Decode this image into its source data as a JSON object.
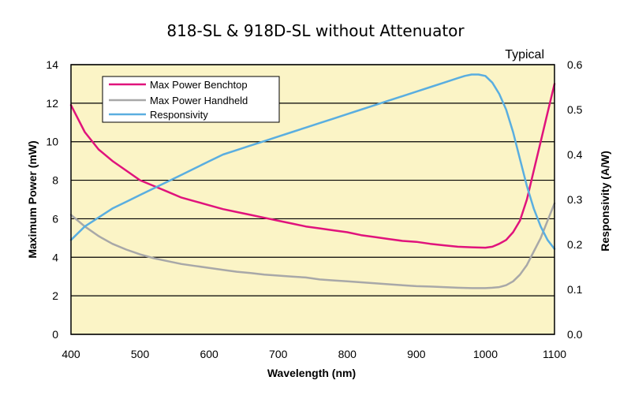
{
  "chart_data": {
    "type": "line",
    "title": "818-SL & 918D-SL without Attenuator",
    "annotation": "Typical",
    "xlabel": "Wavelength (nm)",
    "ylabel": "Maximum Power (mW)",
    "ylabel_right": "Responsivity  (A/W)",
    "xlim": [
      400,
      1100
    ],
    "ylim": [
      0,
      14
    ],
    "ylim_right": [
      0,
      0.6
    ],
    "x_ticks": [
      "400",
      "500",
      "600",
      "700",
      "800",
      "900",
      "1000",
      "1100"
    ],
    "y_ticks": [
      "0",
      "2",
      "4",
      "6",
      "8",
      "10",
      "12",
      "14"
    ],
    "y_ticks_right": [
      "0.0",
      "0.1",
      "0.2",
      "0.3",
      "0.4",
      "0.5",
      "0.6"
    ],
    "grid": "horizontal",
    "legend_position": "top-left",
    "colors": {
      "plot_background": "#fbf4c6",
      "gridline": "#000000",
      "benchtop": "#e0137c",
      "handheld": "#a8a8a8",
      "responsivity": "#5aaee0"
    },
    "series": [
      {
        "name": "Max Power Benchtop",
        "axis": "left",
        "x": [
          400,
          420,
          440,
          460,
          480,
          500,
          520,
          540,
          560,
          580,
          600,
          620,
          640,
          660,
          680,
          700,
          720,
          740,
          760,
          780,
          800,
          820,
          840,
          860,
          880,
          900,
          920,
          940,
          960,
          980,
          1000,
          1010,
          1020,
          1030,
          1040,
          1050,
          1060,
          1070,
          1080,
          1090,
          1100
        ],
        "values": [
          11.9,
          10.5,
          9.6,
          9.0,
          8.5,
          8.0,
          7.7,
          7.4,
          7.1,
          6.9,
          6.7,
          6.5,
          6.35,
          6.2,
          6.05,
          5.9,
          5.75,
          5.6,
          5.5,
          5.4,
          5.3,
          5.15,
          5.05,
          4.95,
          4.85,
          4.8,
          4.7,
          4.62,
          4.55,
          4.52,
          4.5,
          4.55,
          4.7,
          4.9,
          5.3,
          5.9,
          7.0,
          8.5,
          10.0,
          11.5,
          13.0
        ]
      },
      {
        "name": "Max Power Handheld",
        "axis": "left",
        "x": [
          400,
          420,
          440,
          460,
          480,
          500,
          520,
          540,
          560,
          580,
          600,
          620,
          640,
          660,
          680,
          700,
          720,
          740,
          760,
          780,
          800,
          820,
          840,
          860,
          880,
          900,
          920,
          940,
          960,
          980,
          1000,
          1010,
          1020,
          1030,
          1040,
          1050,
          1060,
          1070,
          1080,
          1090,
          1100
        ],
        "values": [
          6.2,
          5.6,
          5.1,
          4.7,
          4.4,
          4.15,
          3.95,
          3.8,
          3.65,
          3.55,
          3.45,
          3.35,
          3.25,
          3.18,
          3.1,
          3.05,
          3.0,
          2.95,
          2.85,
          2.8,
          2.75,
          2.7,
          2.65,
          2.6,
          2.55,
          2.5,
          2.48,
          2.45,
          2.42,
          2.4,
          2.4,
          2.42,
          2.45,
          2.55,
          2.75,
          3.1,
          3.6,
          4.3,
          5.0,
          5.9,
          6.8
        ]
      },
      {
        "name": "Responsivity",
        "axis": "right",
        "x": [
          400,
          420,
          440,
          460,
          480,
          500,
          520,
          540,
          560,
          580,
          600,
          620,
          640,
          660,
          680,
          700,
          720,
          740,
          760,
          780,
          800,
          820,
          840,
          860,
          880,
          900,
          920,
          940,
          960,
          970,
          980,
          990,
          1000,
          1010,
          1020,
          1030,
          1040,
          1050,
          1060,
          1070,
          1080,
          1090,
          1100
        ],
        "values": [
          0.21,
          0.24,
          0.26,
          0.28,
          0.295,
          0.31,
          0.325,
          0.34,
          0.355,
          0.37,
          0.385,
          0.4,
          0.41,
          0.42,
          0.43,
          0.44,
          0.45,
          0.46,
          0.47,
          0.48,
          0.49,
          0.5,
          0.51,
          0.52,
          0.53,
          0.54,
          0.55,
          0.56,
          0.57,
          0.575,
          0.578,
          0.578,
          0.575,
          0.56,
          0.535,
          0.5,
          0.45,
          0.39,
          0.33,
          0.28,
          0.24,
          0.21,
          0.19
        ]
      }
    ]
  }
}
